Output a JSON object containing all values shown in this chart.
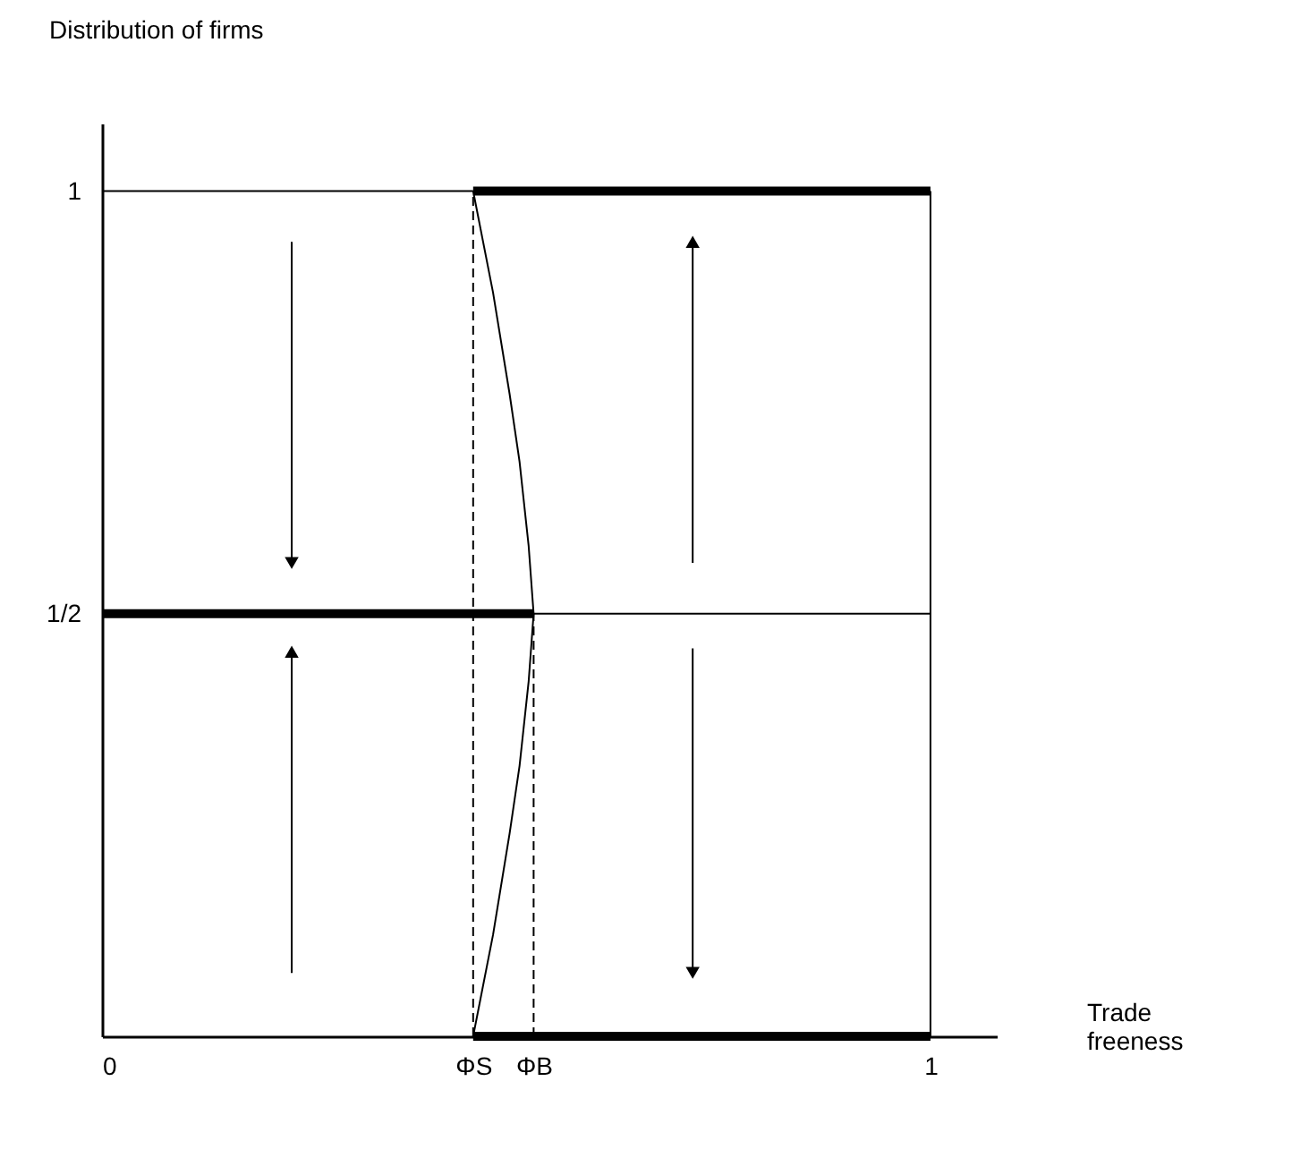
{
  "chart_data": {
    "type": "line",
    "xlabel": "Trade freeness",
    "ylabel": "Distribution of firms",
    "xlim": [
      0,
      1.08
    ],
    "ylim": [
      0,
      1.08
    ],
    "xticks": [
      0,
      {
        "value": 0.448,
        "label": "ΦS"
      },
      {
        "value": 0.521,
        "label": "ΦB"
      },
      1
    ],
    "yticks": [
      {
        "value": 0.5,
        "label": "1/2"
      },
      1
    ],
    "series": [
      {
        "color": "#000000",
        "x": [
          0,
          0.521
        ],
        "values": [
          0.5,
          0.5
        ]
      },
      {
        "color": "#000000",
        "x": [
          0.448,
          1
        ],
        "values": [
          1,
          1
        ]
      },
      {
        "color": "#000000",
        "x": [
          0.448,
          1
        ],
        "values": [
          0,
          0
        ]
      },
      {
        "color": "#000000",
        "x": [
          0.521,
          1
        ],
        "values": [
          0.5,
          0.5
        ]
      },
      {
        "color": "#000000",
        "x": [
          0,
          0.448
        ],
        "values": [
          1,
          1
        ]
      },
      {
        "color": "#000000",
        "x": [
          1,
          1
        ],
        "values": [
          0,
          1
        ]
      },
      {
        "color": "#000000",
        "x": [
          0.448,
          0.472,
          0.492,
          0.504,
          0.515,
          0.521,
          0.515,
          0.504,
          0.492,
          0.472,
          0.448
        ],
        "values": [
          1,
          0.88,
          0.76,
          0.68,
          0.58,
          0.5,
          0.42,
          0.32,
          0.24,
          0.12,
          0
        ]
      },
      {
        "color": "#000000",
        "line_style": "dashed",
        "x": [
          0.448,
          0.448
        ],
        "values": [
          0,
          1
        ]
      },
      {
        "color": "#000000",
        "line_style": "dashed",
        "x": [
          0.521,
          0.521
        ],
        "values": [
          0,
          0.5
        ]
      },
      {
        "color": "#000000",
        "marker": "triangle",
        "x": [
          0.229,
          0.229
        ],
        "values": [
          0.94,
          0.56
        ]
      },
      {
        "color": "#000000",
        "marker": "triangle",
        "x": [
          0.229,
          0.229
        ],
        "values": [
          0.075,
          0.455
        ]
      },
      {
        "color": "#000000",
        "marker": "triangle",
        "x": [
          0.713,
          0.713
        ],
        "values": [
          0.56,
          0.94
        ]
      },
      {
        "color": "#000000",
        "marker": "triangle",
        "x": [
          0.713,
          0.713
        ],
        "values": [
          0.459,
          0.075
        ]
      }
    ]
  }
}
